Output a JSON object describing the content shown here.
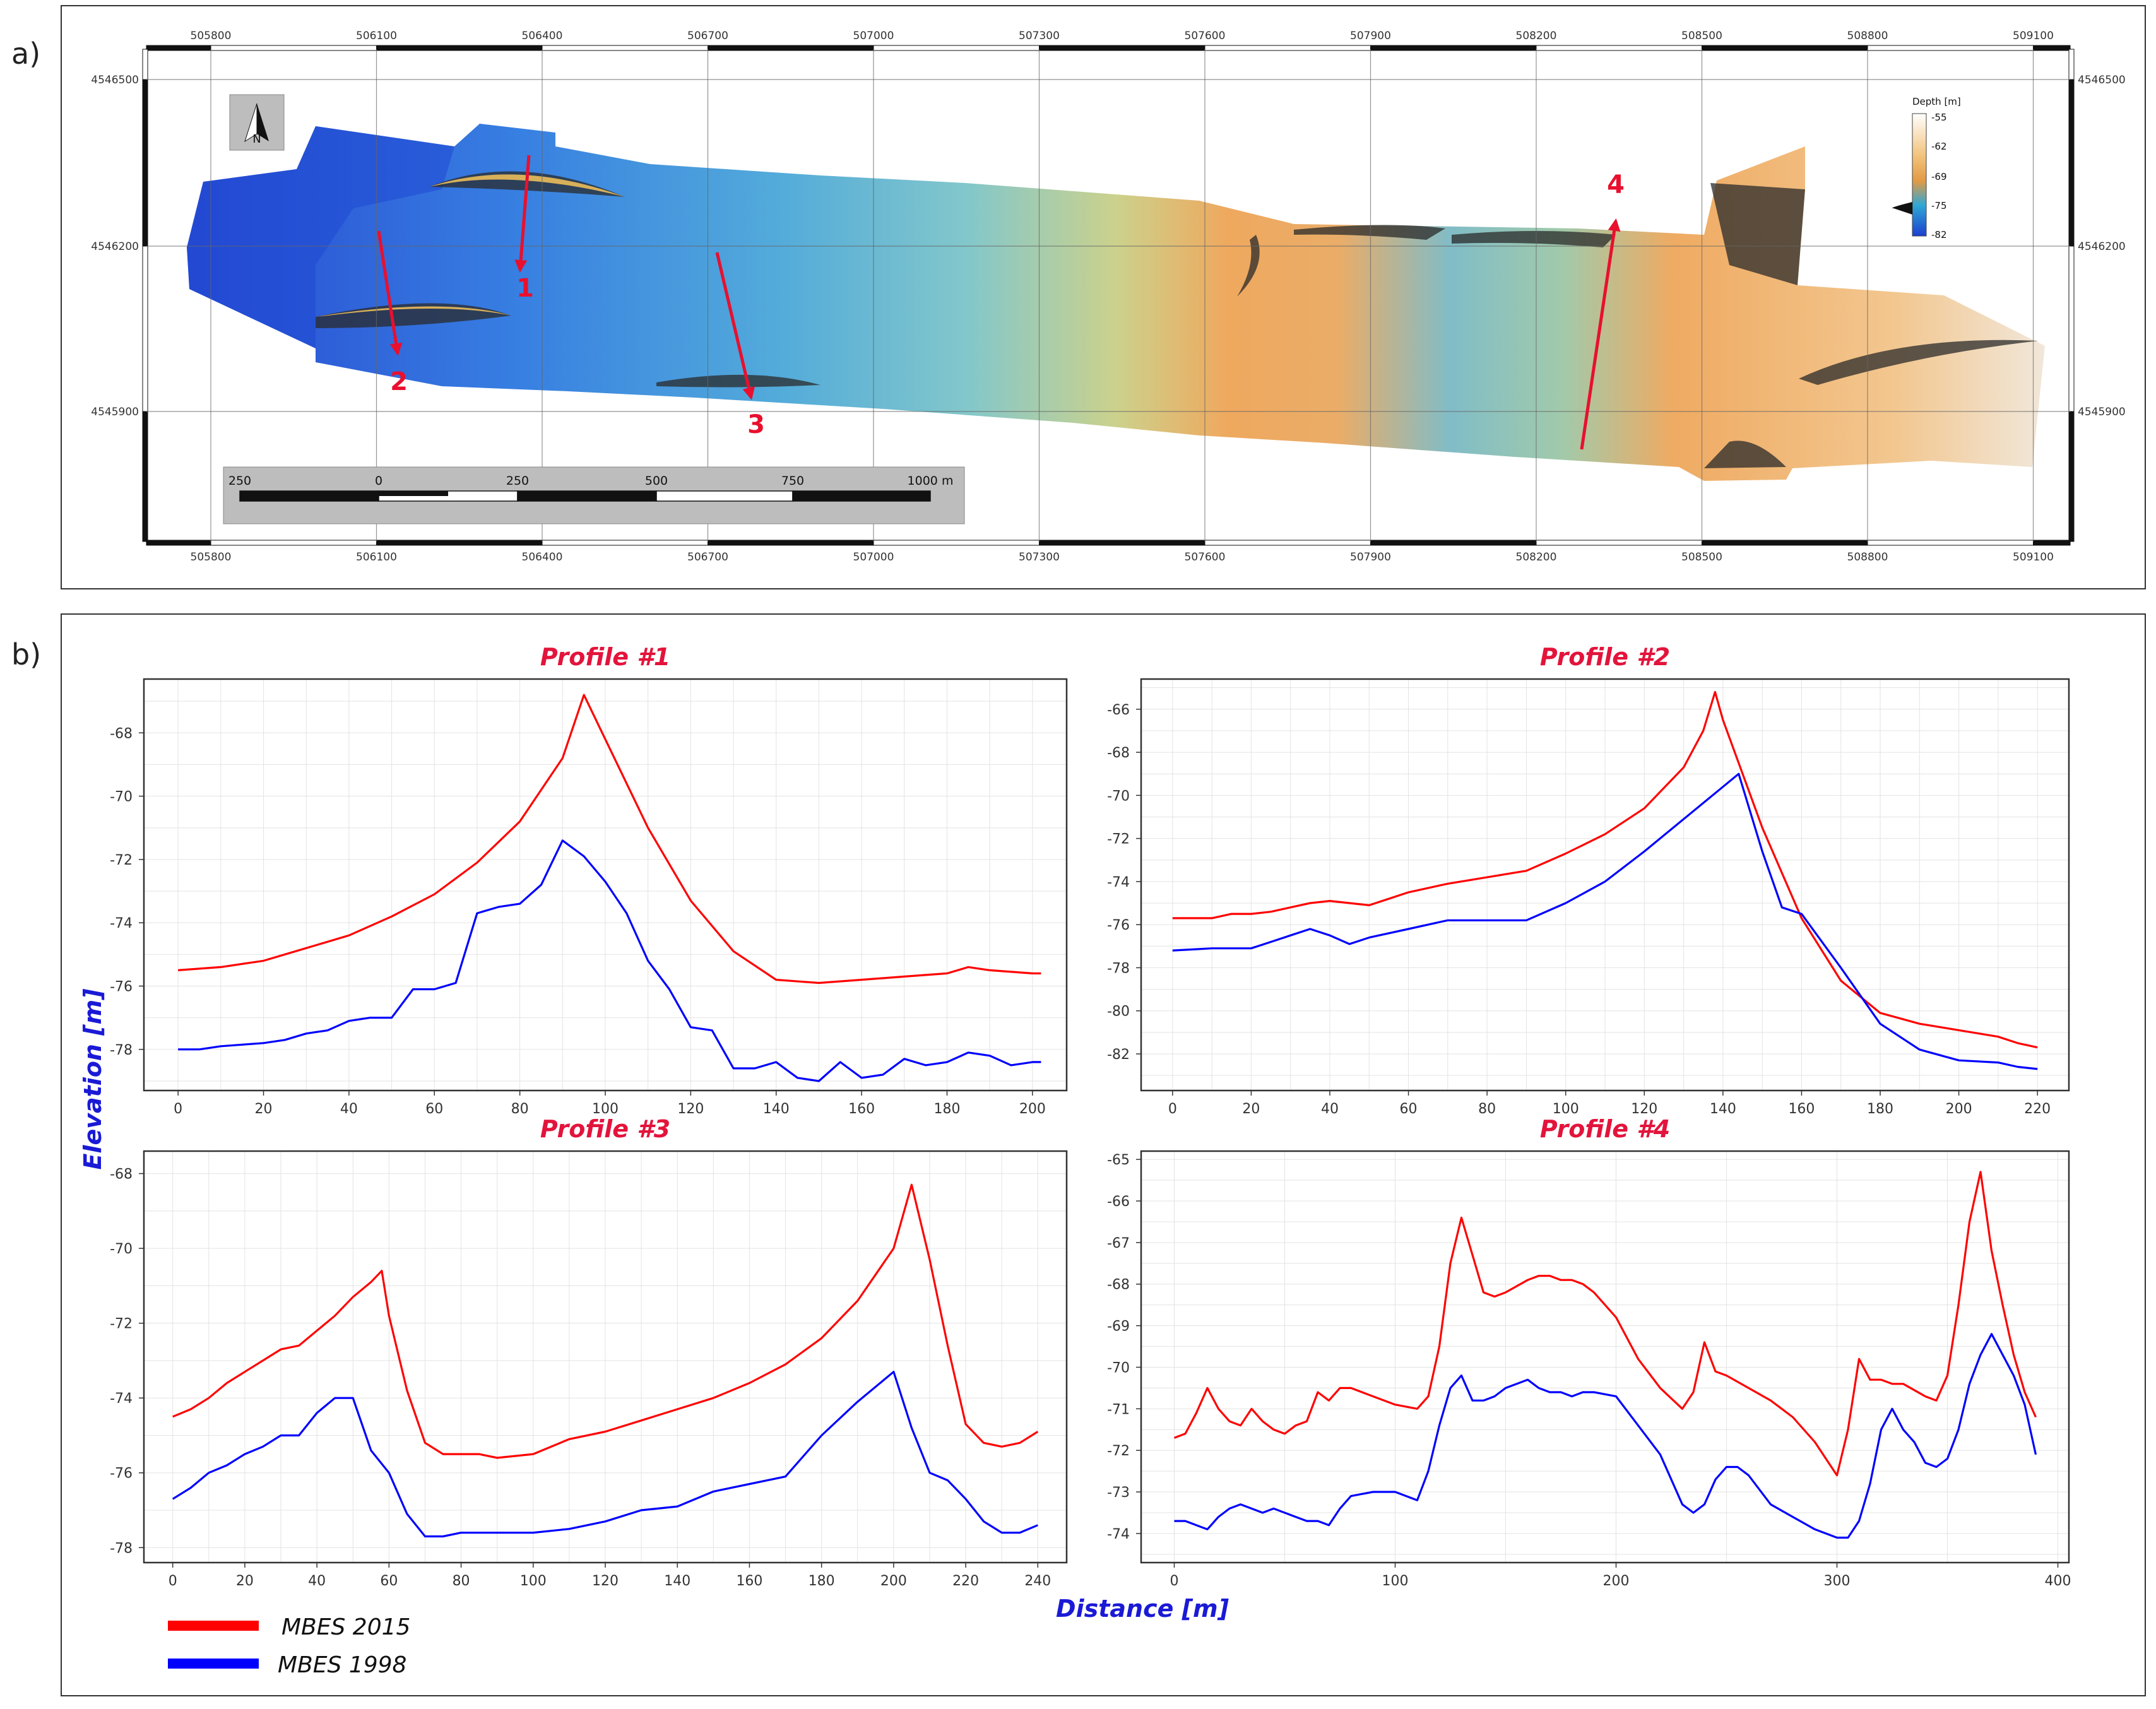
{
  "panels": {
    "a": "a)",
    "b": "b)"
  },
  "map": {
    "x_ticks": [
      "505800",
      "506100",
      "506400",
      "506700",
      "507000",
      "507300",
      "507600",
      "507900",
      "508200",
      "508500",
      "508800",
      "509100"
    ],
    "y_ticks": [
      "4546500",
      "4546200",
      "4545900"
    ],
    "north_label": "N",
    "scalebar_labels": [
      "250",
      "0",
      "250",
      "500",
      "750",
      "1000 m"
    ],
    "colorbar": {
      "title": "Depth [m]",
      "labels": [
        "-55",
        "-62",
        "-69",
        "-75",
        "-82"
      ]
    },
    "colors": {
      "deep": "#1c3fd0",
      "mid": "#f0c860",
      "shallow": "#ffffff",
      "arrow": "#e8102e"
    },
    "profile_lines": [
      {
        "label": "1"
      },
      {
        "label": "2"
      },
      {
        "label": "3"
      },
      {
        "label": "4"
      }
    ]
  },
  "legend": [
    {
      "label": "MBES 2015",
      "color": "#ff0000"
    },
    {
      "label": "MBES 1998",
      "color": "#0000ff"
    }
  ],
  "axis_labels": {
    "y": "Elevation [m]",
    "x": "Distance [m]"
  },
  "chart_data": [
    {
      "type": "line",
      "title": "Profile #1",
      "xlim": [
        -8,
        208
      ],
      "ylim": [
        -79.3,
        -66.3
      ],
      "xticks": [
        0,
        20,
        40,
        60,
        80,
        100,
        120,
        140,
        160,
        180,
        200
      ],
      "yticks": [
        -68,
        -70,
        -72,
        -74,
        -76,
        -78
      ],
      "series": [
        {
          "name": "MBES 2015",
          "color": "#ff0000",
          "x": [
            0,
            10,
            20,
            30,
            40,
            50,
            60,
            70,
            80,
            90,
            95,
            100,
            110,
            120,
            130,
            140,
            150,
            160,
            170,
            180,
            185,
            190,
            200,
            202
          ],
          "y": [
            -75.5,
            -75.4,
            -75.2,
            -74.8,
            -74.4,
            -73.8,
            -73.1,
            -72.1,
            -70.8,
            -68.8,
            -66.8,
            -68.2,
            -71.0,
            -73.3,
            -74.9,
            -75.8,
            -75.9,
            -75.8,
            -75.7,
            -75.6,
            -75.4,
            -75.5,
            -75.6,
            -75.6
          ]
        },
        {
          "name": "MBES 1998",
          "color": "#0000ff",
          "x": [
            0,
            5,
            10,
            20,
            25,
            30,
            35,
            40,
            45,
            50,
            55,
            60,
            65,
            70,
            75,
            80,
            85,
            90,
            95,
            100,
            105,
            110,
            115,
            120,
            125,
            130,
            135,
            140,
            145,
            150,
            155,
            160,
            165,
            170,
            175,
            180,
            185,
            190,
            195,
            200,
            202
          ],
          "y": [
            -78.0,
            -78.0,
            -77.9,
            -77.8,
            -77.7,
            -77.5,
            -77.4,
            -77.1,
            -77.0,
            -77.0,
            -76.1,
            -76.1,
            -75.9,
            -73.7,
            -73.5,
            -73.4,
            -72.8,
            -71.4,
            -71.9,
            -72.7,
            -73.7,
            -75.2,
            -76.1,
            -77.3,
            -77.4,
            -78.6,
            -78.6,
            -78.4,
            -78.9,
            -79.0,
            -78.4,
            -78.9,
            -78.8,
            -78.3,
            -78.5,
            -78.4,
            -78.1,
            -78.2,
            -78.5,
            -78.4,
            -78.4
          ]
        }
      ]
    },
    {
      "type": "line",
      "title": "Profile #2",
      "xlim": [
        -8,
        228
      ],
      "ylim": [
        -83.7,
        -64.6
      ],
      "xticks": [
        0,
        20,
        40,
        60,
        80,
        100,
        120,
        140,
        160,
        180,
        200,
        220
      ],
      "yticks": [
        -66,
        -68,
        -70,
        -72,
        -74,
        -76,
        -78,
        -80,
        -82
      ],
      "series": [
        {
          "name": "MBES 2015",
          "color": "#ff0000",
          "x": [
            0,
            10,
            15,
            20,
            25,
            30,
            35,
            40,
            45,
            50,
            55,
            60,
            70,
            80,
            90,
            100,
            110,
            120,
            130,
            135,
            138,
            140,
            150,
            160,
            170,
            180,
            190,
            200,
            210,
            215,
            220
          ],
          "y": [
            -75.7,
            -75.7,
            -75.5,
            -75.5,
            -75.4,
            -75.2,
            -75.0,
            -74.9,
            -75.0,
            -75.1,
            -74.8,
            -74.5,
            -74.1,
            -73.8,
            -73.5,
            -72.7,
            -71.8,
            -70.6,
            -68.7,
            -67.0,
            -65.2,
            -66.5,
            -71.5,
            -75.7,
            -78.6,
            -80.1,
            -80.6,
            -80.9,
            -81.2,
            -81.5,
            -81.7
          ]
        },
        {
          "name": "MBES 1998",
          "color": "#0000ff",
          "x": [
            0,
            10,
            20,
            25,
            30,
            35,
            40,
            45,
            50,
            60,
            70,
            80,
            90,
            100,
            110,
            120,
            130,
            140,
            144,
            150,
            155,
            160,
            170,
            180,
            190,
            200,
            210,
            215,
            220
          ],
          "y": [
            -77.2,
            -77.1,
            -77.1,
            -76.8,
            -76.5,
            -76.2,
            -76.5,
            -76.9,
            -76.6,
            -76.2,
            -75.8,
            -75.8,
            -75.8,
            -75.0,
            -74.0,
            -72.6,
            -71.1,
            -69.6,
            -69.0,
            -72.6,
            -75.2,
            -75.5,
            -78.0,
            -80.6,
            -81.8,
            -82.3,
            -82.4,
            -82.6,
            -82.7
          ]
        }
      ]
    },
    {
      "type": "line",
      "title": "Profile #3",
      "xlim": [
        -8,
        248
      ],
      "ylim": [
        -78.4,
        -67.4
      ],
      "xticks": [
        0,
        20,
        40,
        60,
        80,
        100,
        120,
        140,
        160,
        180,
        200,
        220,
        240
      ],
      "yticks": [
        -68,
        -70,
        -72,
        -74,
        -76,
        -78
      ],
      "series": [
        {
          "name": "MBES 2015",
          "color": "#ff0000",
          "x": [
            0,
            5,
            10,
            15,
            20,
            25,
            30,
            35,
            40,
            45,
            50,
            55,
            58,
            60,
            65,
            70,
            75,
            80,
            85,
            90,
            100,
            110,
            120,
            130,
            140,
            150,
            160,
            170,
            180,
            190,
            200,
            205,
            210,
            215,
            220,
            225,
            230,
            235,
            240
          ],
          "y": [
            -74.5,
            -74.3,
            -74.0,
            -73.6,
            -73.3,
            -73.0,
            -72.7,
            -72.6,
            -72.2,
            -71.8,
            -71.3,
            -70.9,
            -70.6,
            -71.8,
            -73.8,
            -75.2,
            -75.5,
            -75.5,
            -75.5,
            -75.6,
            -75.5,
            -75.1,
            -74.9,
            -74.6,
            -74.3,
            -74.0,
            -73.6,
            -73.1,
            -72.4,
            -71.4,
            -70.0,
            -68.3,
            -70.3,
            -72.6,
            -74.7,
            -75.2,
            -75.3,
            -75.2,
            -74.9
          ]
        },
        {
          "name": "MBES 1998",
          "color": "#0000ff",
          "x": [
            0,
            5,
            10,
            15,
            20,
            25,
            30,
            35,
            40,
            45,
            50,
            55,
            60,
            65,
            70,
            75,
            80,
            85,
            90,
            100,
            110,
            120,
            130,
            140,
            150,
            160,
            170,
            180,
            190,
            200,
            205,
            210,
            215,
            220,
            225,
            230,
            235,
            240
          ],
          "y": [
            -76.7,
            -76.4,
            -76.0,
            -75.8,
            -75.5,
            -75.3,
            -75.0,
            -75.0,
            -74.4,
            -74.0,
            -74.0,
            -75.4,
            -76.0,
            -77.1,
            -77.7,
            -77.7,
            -77.6,
            -77.6,
            -77.6,
            -77.6,
            -77.5,
            -77.3,
            -77.0,
            -76.9,
            -76.5,
            -76.3,
            -76.1,
            -75.0,
            -74.1,
            -73.3,
            -74.8,
            -76.0,
            -76.2,
            -76.7,
            -77.3,
            -77.6,
            -77.6,
            -77.4
          ]
        }
      ]
    },
    {
      "type": "line",
      "title": "Profile #4",
      "xlim": [
        -15,
        405
      ],
      "ylim": [
        -74.7,
        -64.8
      ],
      "xticks": [
        0,
        100,
        200,
        300,
        400
      ],
      "yticks": [
        -65,
        -66,
        -67,
        -68,
        -69,
        -70,
        -71,
        -72,
        -73,
        -74
      ],
      "series": [
        {
          "name": "MBES 2015",
          "color": "#ff0000",
          "x": [
            0,
            5,
            10,
            15,
            20,
            25,
            30,
            35,
            40,
            45,
            50,
            55,
            60,
            65,
            70,
            75,
            80,
            90,
            100,
            110,
            115,
            120,
            125,
            130,
            135,
            140,
            145,
            150,
            160,
            165,
            170,
            175,
            180,
            185,
            190,
            200,
            210,
            220,
            230,
            235,
            240,
            245,
            250,
            260,
            270,
            280,
            290,
            300,
            305,
            310,
            315,
            320,
            325,
            330,
            340,
            345,
            350,
            355,
            360,
            365,
            370,
            375,
            380,
            385,
            390
          ],
          "y": [
            -71.7,
            -71.6,
            -71.1,
            -70.5,
            -71.0,
            -71.3,
            -71.4,
            -71.0,
            -71.3,
            -71.5,
            -71.6,
            -71.4,
            -71.3,
            -70.6,
            -70.8,
            -70.5,
            -70.5,
            -70.7,
            -70.9,
            -71.0,
            -70.7,
            -69.5,
            -67.5,
            -66.4,
            -67.3,
            -68.2,
            -68.3,
            -68.2,
            -67.9,
            -67.8,
            -67.8,
            -67.9,
            -67.9,
            -68.0,
            -68.2,
            -68.8,
            -69.8,
            -70.5,
            -71.0,
            -70.6,
            -69.4,
            -70.1,
            -70.2,
            -70.5,
            -70.8,
            -71.2,
            -71.8,
            -72.6,
            -71.5,
            -69.8,
            -70.3,
            -70.3,
            -70.4,
            -70.4,
            -70.7,
            -70.8,
            -70.2,
            -68.5,
            -66.5,
            -65.3,
            -67.2,
            -68.5,
            -69.7,
            -70.6,
            -71.2
          ]
        },
        {
          "name": "MBES 1998",
          "color": "#0000ff",
          "x": [
            0,
            5,
            10,
            15,
            20,
            25,
            30,
            35,
            40,
            45,
            50,
            55,
            60,
            65,
            70,
            75,
            80,
            90,
            100,
            110,
            115,
            120,
            125,
            130,
            135,
            140,
            145,
            150,
            160,
            165,
            170,
            175,
            180,
            185,
            190,
            200,
            210,
            220,
            230,
            235,
            240,
            245,
            250,
            255,
            260,
            270,
            280,
            290,
            300,
            305,
            310,
            315,
            320,
            325,
            330,
            335,
            340,
            345,
            350,
            355,
            360,
            365,
            370,
            375,
            380,
            385,
            390
          ],
          "y": [
            -73.7,
            -73.7,
            -73.8,
            -73.9,
            -73.6,
            -73.4,
            -73.3,
            -73.4,
            -73.5,
            -73.4,
            -73.5,
            -73.6,
            -73.7,
            -73.7,
            -73.8,
            -73.4,
            -73.1,
            -73.0,
            -73.0,
            -73.2,
            -72.5,
            -71.4,
            -70.5,
            -70.2,
            -70.8,
            -70.8,
            -70.7,
            -70.5,
            -70.3,
            -70.5,
            -70.6,
            -70.6,
            -70.7,
            -70.6,
            -70.6,
            -70.7,
            -71.4,
            -72.1,
            -73.3,
            -73.5,
            -73.3,
            -72.7,
            -72.4,
            -72.4,
            -72.6,
            -73.3,
            -73.6,
            -73.9,
            -74.1,
            -74.1,
            -73.7,
            -72.8,
            -71.5,
            -71.0,
            -71.5,
            -71.8,
            -72.3,
            -72.4,
            -72.2,
            -71.5,
            -70.4,
            -69.7,
            -69.2,
            -69.7,
            -70.2,
            -70.9,
            -72.1
          ]
        }
      ]
    }
  ]
}
